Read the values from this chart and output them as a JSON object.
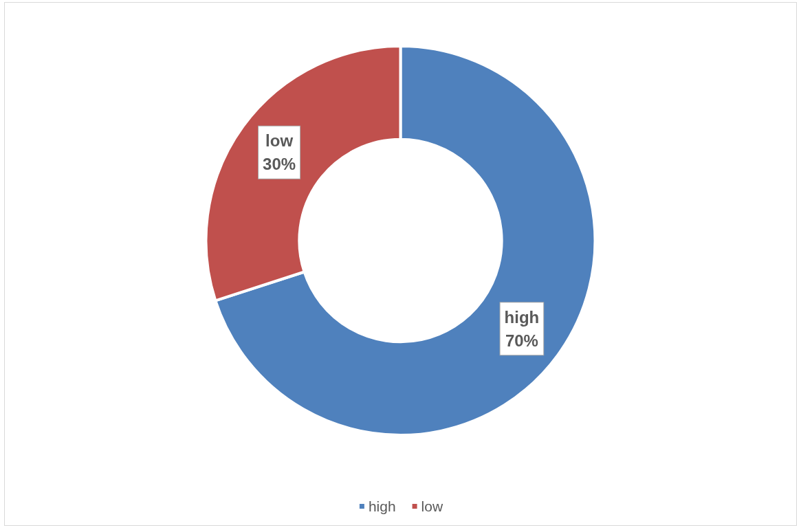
{
  "chart_data": {
    "type": "donut",
    "categories": [
      "high",
      "low"
    ],
    "values": [
      70,
      30
    ],
    "colors": [
      "#4f81bd",
      "#c0504d"
    ],
    "value_labels": [
      "70%",
      "30%"
    ],
    "legend": "bottom"
  }
}
